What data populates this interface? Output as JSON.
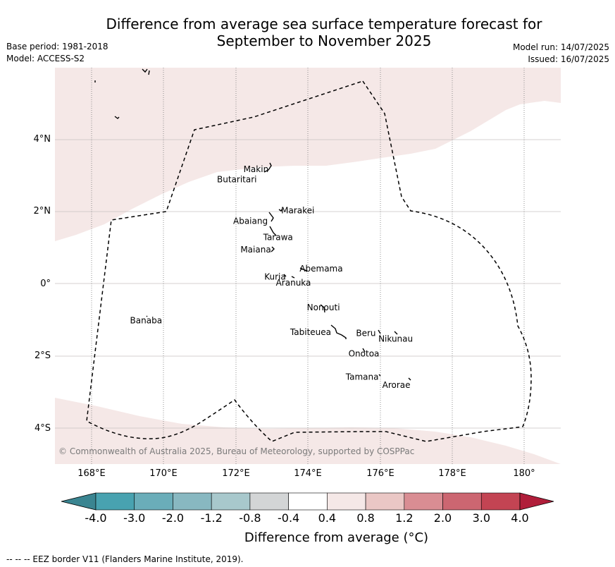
{
  "title": {
    "line1": "Difference from average sea surface temperature forecast for",
    "line2": "September to November 2025"
  },
  "meta_left": {
    "base_period": "Base period: 1981-2018",
    "model": "Model: ACCESS-S2"
  },
  "meta_right": {
    "model_run": "Model run: 14/07/2025",
    "issued": "Issued: 16/07/2025"
  },
  "map": {
    "lon_range": [
      167,
      181
    ],
    "lat_range": [
      -5,
      6
    ],
    "gridlines": "dotted-meridians-solid-parallels",
    "lat_ticks": [
      {
        "value": 4,
        "label": "4°N"
      },
      {
        "value": 2,
        "label": "2°N"
      },
      {
        "value": 0,
        "label": "0°"
      },
      {
        "value": -2,
        "label": "2°S"
      },
      {
        "value": -4,
        "label": "4°S"
      }
    ],
    "lon_ticks": [
      {
        "value": 168,
        "label": "168°E"
      },
      {
        "value": 170,
        "label": "170°E"
      },
      {
        "value": 172,
        "label": "172°E"
      },
      {
        "value": 174,
        "label": "174°E"
      },
      {
        "value": 176,
        "label": "176°E"
      },
      {
        "value": 178,
        "label": "178°E"
      },
      {
        "value": 180,
        "label": "180°"
      }
    ],
    "anomaly_fill_color": "#f5e8e7",
    "anomaly_category": "0.4 to 0.8",
    "islands": [
      {
        "name": "Makin",
        "lon": 172.97,
        "lat": 3.18
      },
      {
        "name": "Butaritari",
        "lon": 172.8,
        "lat": 3.05
      },
      {
        "name": "Marakei",
        "lon": 173.3,
        "lat": 2.02
      },
      {
        "name": "Abaiang",
        "lon": 172.95,
        "lat": 1.8
      },
      {
        "name": "Tarawa",
        "lon": 173.0,
        "lat": 1.45
      },
      {
        "name": "Maiana",
        "lon": 173.0,
        "lat": 0.95
      },
      {
        "name": "Abemama",
        "lon": 173.85,
        "lat": 0.42
      },
      {
        "name": "Kuria",
        "lon": 173.35,
        "lat": 0.22
      },
      {
        "name": "Aranuka",
        "lon": 173.6,
        "lat": 0.17
      },
      {
        "name": "Nonouti",
        "lon": 174.45,
        "lat": -0.65
      },
      {
        "name": "Tabiteuea",
        "lon": 174.8,
        "lat": -1.3
      },
      {
        "name": "Beru",
        "lon": 175.98,
        "lat": -1.33
      },
      {
        "name": "Nikunau",
        "lon": 176.45,
        "lat": -1.35
      },
      {
        "name": "Onotoa",
        "lon": 175.55,
        "lat": -1.82
      },
      {
        "name": "Tamana",
        "lon": 175.98,
        "lat": -2.5
      },
      {
        "name": "Arorae",
        "lon": 176.82,
        "lat": -2.65
      },
      {
        "name": "Banaba",
        "lon": 169.54,
        "lat": -0.86
      }
    ],
    "copyright": "© Commonwealth of Australia 2025, Bureau of Meteorology, supported by COSPPac"
  },
  "colorbar": {
    "colors": [
      "#3a8591",
      "#48a2b0",
      "#6aadb9",
      "#88b8c1",
      "#a8c8cc",
      "#d3d5d6",
      "#ffffff",
      "#f5e8e7",
      "#eac7c5",
      "#d98d93",
      "#cc6671",
      "#c34453",
      "#b01e3a"
    ],
    "ticks": [
      "-4.0",
      "-3.0",
      "-2.0",
      "-1.2",
      "-0.8",
      "-0.4",
      "0.4",
      "0.8",
      "1.2",
      "2.0",
      "3.0",
      "4.0"
    ],
    "label": "Difference from average (°C)"
  },
  "footnote": "--  --  -- EEZ border V11 (Flanders Marine Institute, 2019)."
}
